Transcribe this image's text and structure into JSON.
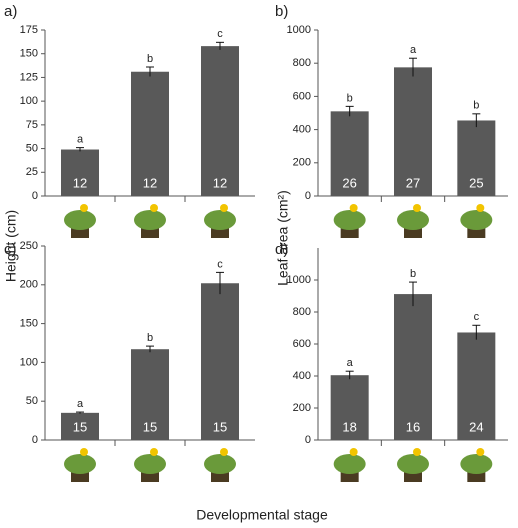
{
  "chart_data": [
    {
      "type": "bar",
      "panel": "a)",
      "ylabel": "Height (cm)",
      "categories": [
        null,
        null,
        null
      ],
      "values": [
        49,
        131,
        158
      ],
      "errors": [
        2,
        5,
        4
      ],
      "annotations": [
        "a",
        "b",
        "c"
      ],
      "n": [
        12,
        12,
        12
      ],
      "color": "#595959",
      "ylim": [
        0,
        175
      ],
      "yticks": [
        0,
        25,
        50,
        75,
        100,
        125,
        150,
        175
      ]
    },
    {
      "type": "bar",
      "panel": "b)",
      "ylabel": "Leaf area (cm²)",
      "categories": [
        null,
        null,
        null
      ],
      "values": [
        510,
        775,
        455
      ],
      "errors": [
        30,
        55,
        40
      ],
      "annotations": [
        "b",
        "a",
        "b"
      ],
      "n": [
        26,
        27,
        25
      ],
      "color": "#595959",
      "ylim": [
        0,
        1000
      ],
      "yticks": [
        0,
        200,
        400,
        600,
        800,
        1000
      ]
    },
    {
      "type": "bar",
      "panel": "c)",
      "categories": [
        null,
        null,
        null
      ],
      "values": [
        35,
        117,
        202
      ],
      "errors": [
        1,
        4,
        14
      ],
      "annotations": [
        "a",
        "b",
        "c"
      ],
      "n": [
        15,
        15,
        15
      ],
      "color": "#595959",
      "ylim": [
        0,
        250
      ],
      "yticks": [
        0,
        50,
        100,
        150,
        200,
        250
      ]
    },
    {
      "type": "bar",
      "panel": "d)",
      "categories": [
        null,
        null,
        null
      ],
      "values": [
        405,
        912,
        672
      ],
      "errors": [
        25,
        75,
        45
      ],
      "annotations": [
        "a",
        "b",
        "c"
      ],
      "n": [
        18,
        16,
        24
      ],
      "color": "#595959",
      "ylim": [
        0,
        1200
      ],
      "yticks": [
        0,
        200,
        400,
        600,
        800,
        1000
      ]
    }
  ],
  "xlabel": "Developmental stage"
}
